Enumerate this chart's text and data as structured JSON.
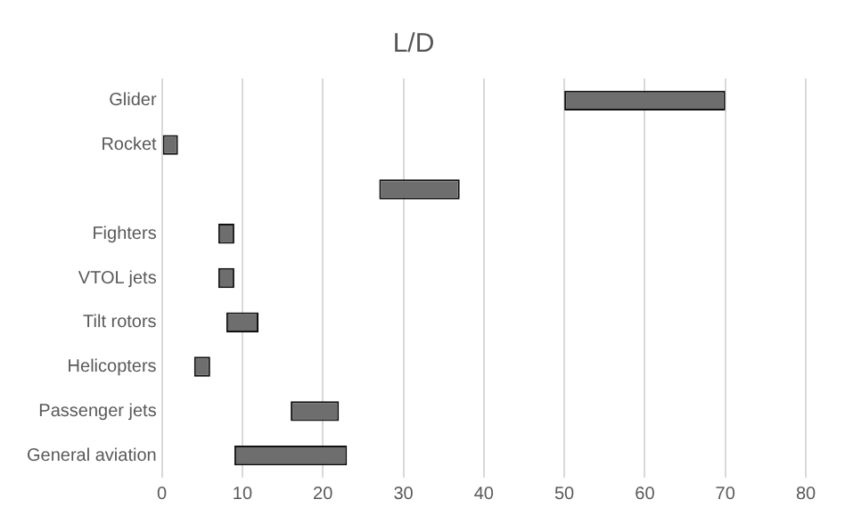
{
  "chart_data": {
    "type": "bar",
    "orientation": "horizontal",
    "title": "L/D",
    "categories": [
      "Glider",
      "Rocket",
      null,
      "Fighters",
      "VTOL jets",
      "Tilt rotors",
      "Helicopters",
      "Passenger jets",
      "General aviation"
    ],
    "base": [
      50,
      0,
      27,
      7,
      7,
      8,
      4,
      16,
      9
    ],
    "values": [
      20,
      2,
      10,
      2,
      2,
      4,
      2,
      6,
      14
    ],
    "color": "#6e6e6e",
    "xlim": [
      0,
      80
    ],
    "xticks": [
      0,
      10,
      20,
      30,
      40,
      50,
      60,
      70,
      80
    ],
    "grid": "x",
    "legend": false
  }
}
